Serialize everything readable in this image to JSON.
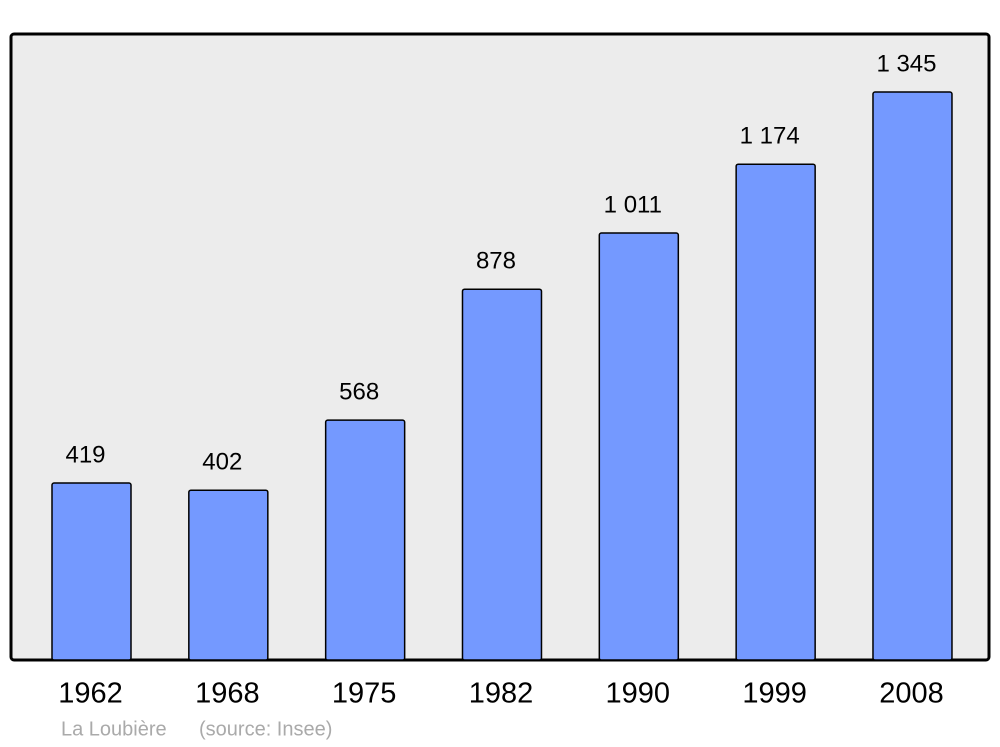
{
  "chart_data": {
    "type": "bar",
    "categories": [
      "1962",
      "1968",
      "1975",
      "1982",
      "1990",
      "1999",
      "2008"
    ],
    "values": [
      419,
      402,
      568,
      878,
      1011,
      1174,
      1345
    ],
    "value_labels": [
      "419",
      "402",
      "568",
      "878",
      "1 011",
      "1 174",
      "1 345"
    ],
    "color": "#7499ff",
    "ylim": [
      0,
      1480
    ],
    "footnote": "La Loubière",
    "source": "(source: Insee)"
  }
}
